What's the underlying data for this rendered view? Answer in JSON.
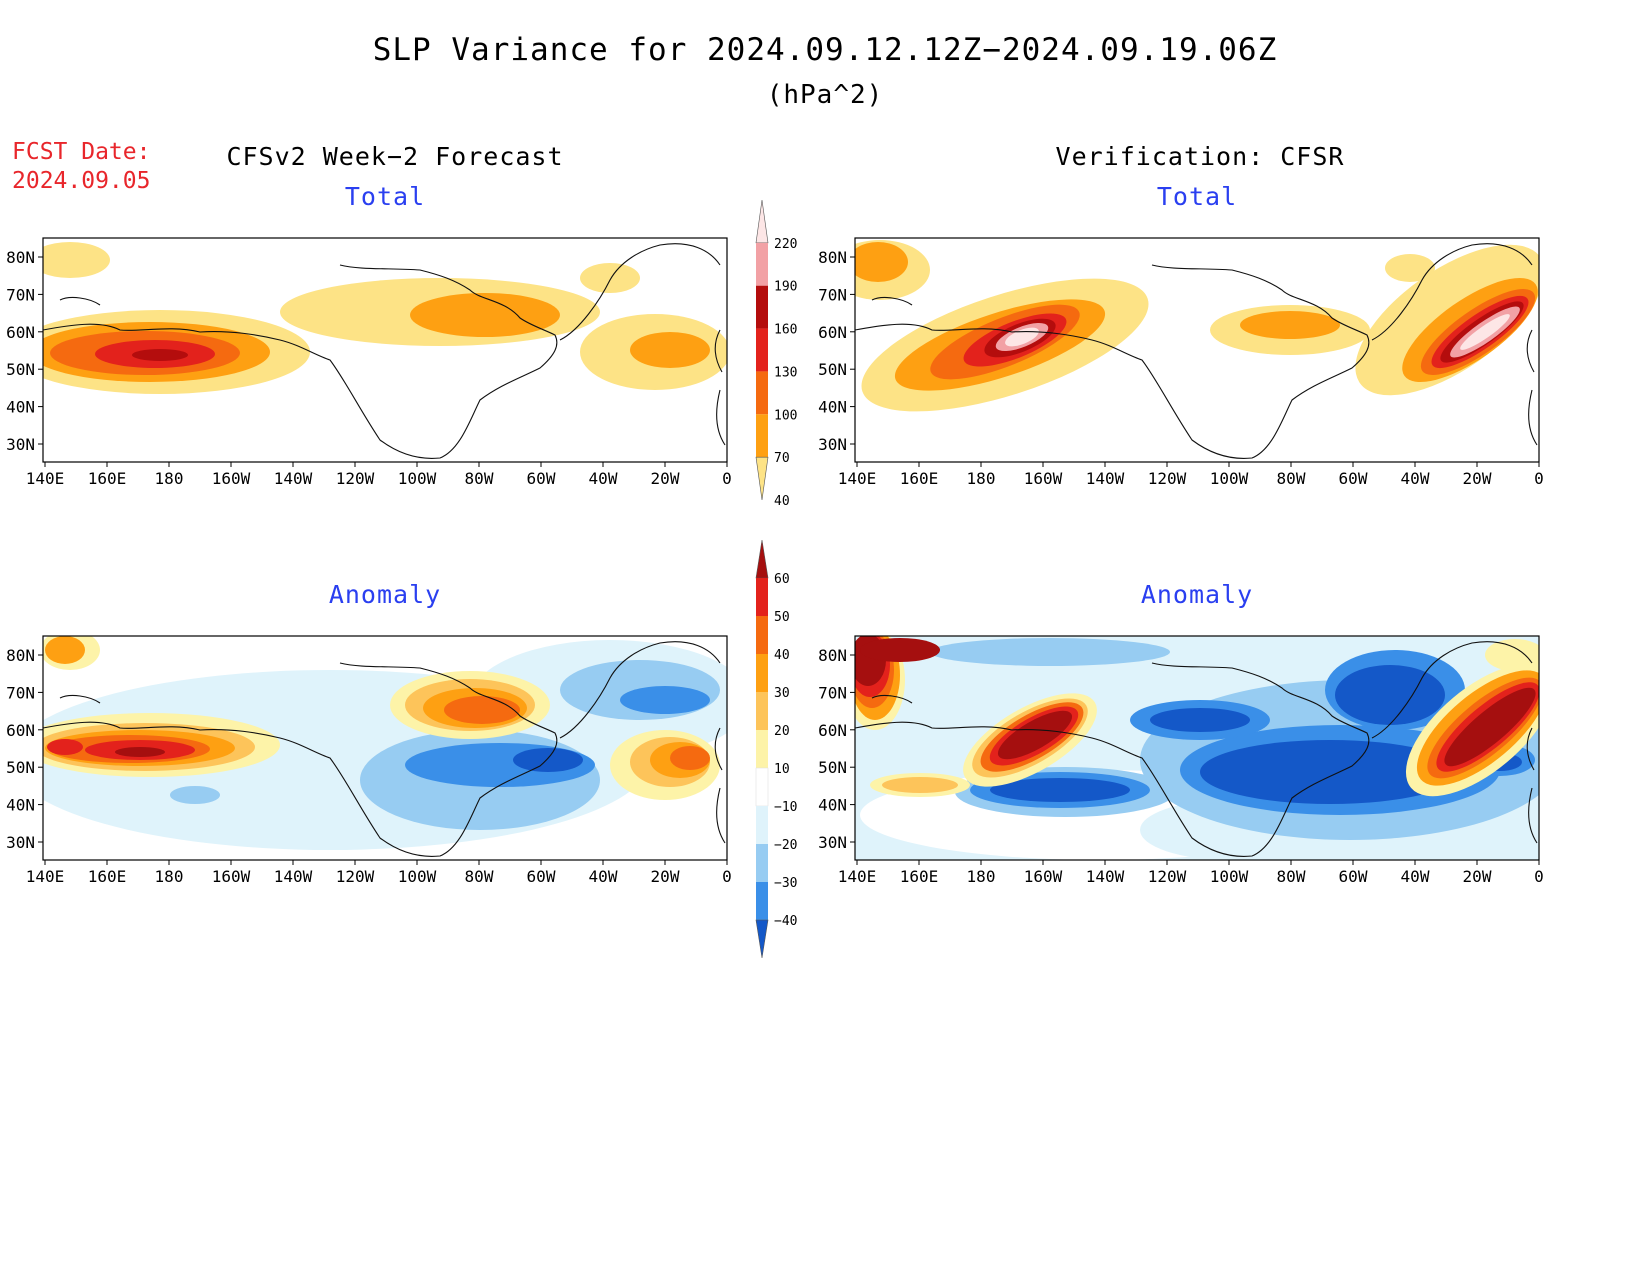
{
  "title": "SLP Variance for 2024.09.12.12Z−2024.09.19.06Z",
  "units": "(hPa^2)",
  "fcst_label": "FCST Date:",
  "fcst_date": "2024.09.05",
  "columns": {
    "left": "CFSv2 Week−2 Forecast",
    "right": "Verification: CFSR"
  },
  "panels": [
    {
      "id": "fcst-total",
      "title": "Total"
    },
    {
      "id": "verif-total",
      "title": "Total"
    },
    {
      "id": "fcst-anomaly",
      "title": "Anomaly"
    },
    {
      "id": "verif-anomaly",
      "title": "Anomaly"
    }
  ],
  "axes": {
    "lat_labels": [
      "80N",
      "70N",
      "60N",
      "50N",
      "40N",
      "30N"
    ],
    "lon_labels": [
      "140E",
      "160E",
      "180",
      "160W",
      "140W",
      "120W",
      "100W",
      "80W",
      "60W",
      "40W",
      "20W",
      "0"
    ]
  },
  "colorbars": {
    "total": {
      "labels": [
        "220",
        "190",
        "160",
        "130",
        "100",
        "70",
        "40"
      ],
      "colors": [
        "#fde6e6",
        "#f2a1a5",
        "#b40d0d",
        "#e3221c",
        "#f56a10",
        "#fea012",
        "#fde386"
      ]
    },
    "anomaly": {
      "labels": [
        "60",
        "50",
        "40",
        "30",
        "20",
        "10",
        "−10",
        "−20",
        "−30",
        "−40"
      ],
      "colors": [
        "#a50f0f",
        "#e3221c",
        "#f56a10",
        "#fea012",
        "#fdc45a",
        "#fdf3a8",
        "#ffffff",
        "#dff3fb",
        "#97ccf2",
        "#3a8fe8",
        "#1458c8"
      ]
    }
  },
  "colors": {
    "title_red": "#e8262b",
    "panel_title_blue": "#2a3ff0"
  }
}
